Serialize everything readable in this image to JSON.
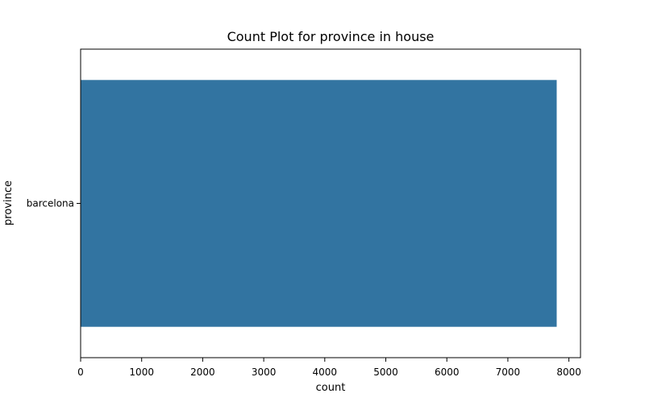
{
  "chart_data": {
    "type": "bar",
    "orientation": "horizontal",
    "title": "Count Plot for province in house",
    "xlabel": "count",
    "ylabel": "province",
    "categories": [
      "barcelona"
    ],
    "values": [
      7800
    ],
    "xlim": [
      0,
      8190
    ],
    "xticks": [
      0,
      1000,
      2000,
      3000,
      4000,
      5000,
      6000,
      7000,
      8000
    ],
    "xtick_labels": [
      "0",
      "1000",
      "2000",
      "3000",
      "4000",
      "5000",
      "6000",
      "7000",
      "8000"
    ],
    "grid": false,
    "legend": "none",
    "colors": {
      "bar": "#3274a1",
      "axes": "#000000",
      "background": "#ffffff"
    }
  }
}
